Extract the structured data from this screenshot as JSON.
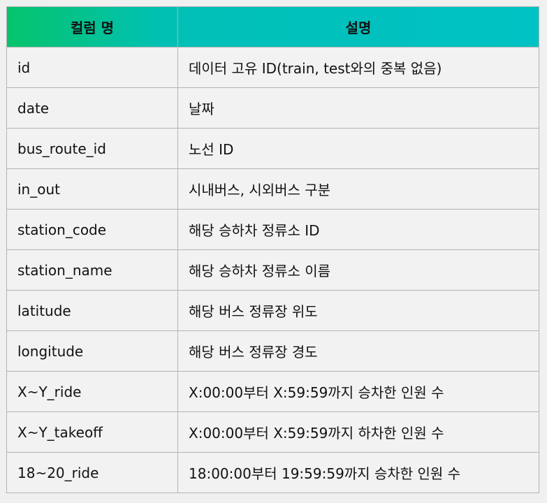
{
  "header": {
    "col1": "컬럼 명",
    "col2": "설명"
  },
  "rows": [
    {
      "name": "id",
      "desc": "데이터 고유 ID(train, test와의 중복 없음)"
    },
    {
      "name": "date",
      "desc": "날짜"
    },
    {
      "name": "bus_route_id",
      "desc": "노선 ID"
    },
    {
      "name": "in_out",
      "desc": "시내버스, 시외버스 구분"
    },
    {
      "name": "station_code",
      "desc": "해당 승하차 정류소 ID"
    },
    {
      "name": "station_name",
      "desc": "해당 승하차 정류소 이름"
    },
    {
      "name": "latitude",
      "desc": "해당 버스 정류장 위도"
    },
    {
      "name": "longitude",
      "desc": "해당 버스 정류장 경도"
    },
    {
      "name": "X~Y_ride",
      "desc": "X:00:00부터 X:59:59까지 승차한 인원 수"
    },
    {
      "name": "X~Y_takeoff",
      "desc": "X:00:00부터 X:59:59까지 하차한 인원 수"
    },
    {
      "name": "18~20_ride",
      "desc": "18:00:00부터 19:59:59까지 승차한 인원 수"
    }
  ]
}
